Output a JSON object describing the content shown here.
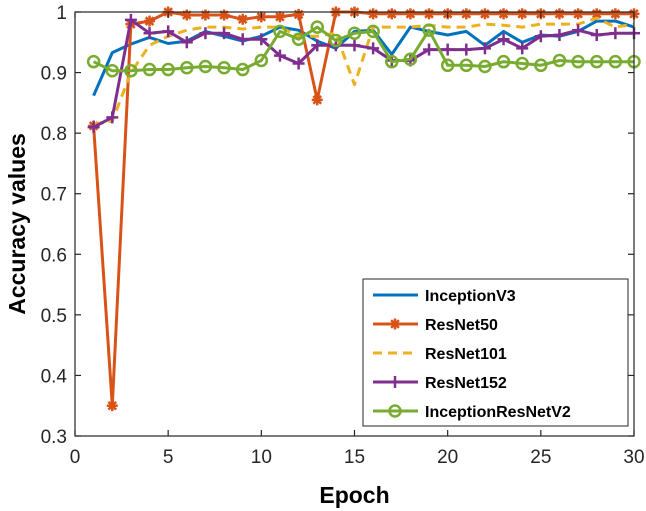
{
  "chart_data": {
    "type": "line",
    "title": "",
    "xlabel": "Epoch",
    "ylabel": "Accuracy values",
    "xlim": [
      0,
      30
    ],
    "ylim": [
      0.3,
      1.0
    ],
    "xticks": [
      "0",
      "5",
      "10",
      "15",
      "20",
      "25",
      "30"
    ],
    "yticks": [
      "0.3",
      "0.4",
      "0.5",
      "0.6",
      "0.7",
      "0.8",
      "0.9",
      "1"
    ],
    "legend_position": "bottom-right",
    "x": [
      1,
      2,
      3,
      4,
      5,
      6,
      7,
      8,
      9,
      10,
      11,
      12,
      13,
      14,
      15,
      16,
      17,
      18,
      19,
      20,
      21,
      22,
      23,
      24,
      25,
      26,
      27,
      28,
      29,
      30
    ],
    "series": [
      {
        "name": "InceptionV3",
        "color": "#0072BD",
        "line": "solid",
        "marker": "none",
        "values": [
          0.862,
          0.933,
          0.947,
          0.958,
          0.948,
          0.952,
          0.968,
          0.96,
          0.952,
          0.96,
          0.975,
          0.97,
          0.952,
          0.94,
          0.968,
          0.97,
          0.93,
          0.975,
          0.968,
          0.962,
          0.968,
          0.945,
          0.968,
          0.95,
          0.962,
          0.96,
          0.968,
          0.985,
          0.985,
          0.975
        ]
      },
      {
        "name": "ResNet50",
        "color": "#D95319",
        "line": "solid",
        "marker": "asterisk",
        "values": [
          0.812,
          0.35,
          0.98,
          0.985,
          1.0,
          0.995,
          0.995,
          0.995,
          0.988,
          0.992,
          0.992,
          0.996,
          0.855,
          1.0,
          1.0,
          0.997,
          0.997,
          0.997,
          0.997,
          0.997,
          0.997,
          0.997,
          0.997,
          0.997,
          0.997,
          0.997,
          0.997,
          0.997,
          0.997,
          0.997
        ]
      },
      {
        "name": "ResNet101",
        "color": "#EDB120",
        "line": "dashed",
        "marker": "none",
        "values": [
          0.815,
          0.82,
          0.9,
          0.945,
          0.96,
          0.97,
          0.975,
          0.975,
          0.972,
          0.975,
          0.975,
          0.96,
          0.96,
          0.965,
          0.88,
          0.975,
          0.975,
          0.975,
          0.978,
          0.975,
          0.975,
          0.98,
          0.978,
          0.975,
          0.98,
          0.98,
          0.98,
          0.99,
          0.975,
          0.98
        ]
      },
      {
        "name": "ResNet152",
        "color": "#7E2F8E",
        "line": "solid",
        "marker": "plus",
        "values": [
          0.81,
          0.826,
          0.987,
          0.965,
          0.968,
          0.95,
          0.965,
          0.965,
          0.955,
          0.955,
          0.928,
          0.915,
          0.945,
          0.945,
          0.945,
          0.94,
          0.92,
          0.92,
          0.938,
          0.938,
          0.938,
          0.94,
          0.955,
          0.94,
          0.96,
          0.962,
          0.97,
          0.962,
          0.965,
          0.965
        ]
      },
      {
        "name": "InceptionResNetV2",
        "color": "#77AC30",
        "line": "solid",
        "marker": "circle",
        "values": [
          0.918,
          0.903,
          0.903,
          0.905,
          0.905,
          0.908,
          0.91,
          0.908,
          0.905,
          0.92,
          0.968,
          0.955,
          0.975,
          0.953,
          0.965,
          0.968,
          0.918,
          0.922,
          0.97,
          0.912,
          0.912,
          0.91,
          0.918,
          0.915,
          0.912,
          0.92,
          0.918,
          0.918,
          0.918,
          0.918
        ]
      }
    ]
  }
}
